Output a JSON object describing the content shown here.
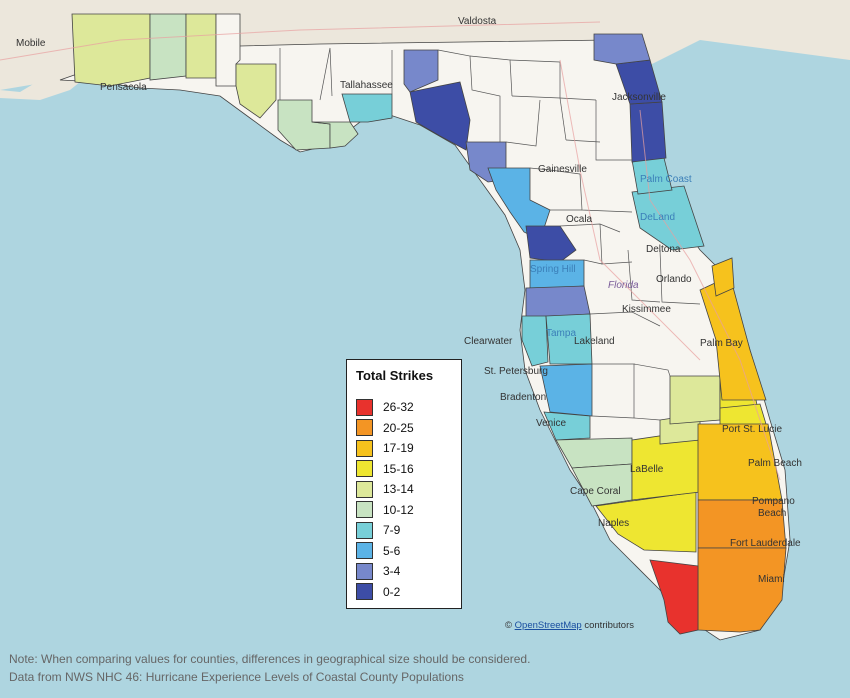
{
  "legend": {
    "title": "Total Strikes",
    "items": [
      {
        "label": "26-32",
        "color": "#e8322d"
      },
      {
        "label": "20-25",
        "color": "#f39524"
      },
      {
        "label": "17-19",
        "color": "#f6c21d"
      },
      {
        "label": "15-16",
        "color": "#eee631"
      },
      {
        "label": "13-14",
        "color": "#dde89a"
      },
      {
        "label": "10-12",
        "color": "#c8e3c2"
      },
      {
        "label": "7-9",
        "color": "#77cfd8"
      },
      {
        "label": "5-6",
        "color": "#5bb3e6"
      },
      {
        "label": "3-4",
        "color": "#7788cb"
      },
      {
        "label": "0-2",
        "color": "#3d4da6"
      }
    ]
  },
  "cities": {
    "valdosta": "Valdosta",
    "mobile": "Mobile",
    "pensacola": "Pensacola",
    "tallahassee": "Tallahassee",
    "jacksonville": "Jacksonville",
    "gainesville": "Gainesville",
    "palm_coast": "Palm Coast",
    "ocala": "Ocala",
    "deland": "DeLand",
    "deltona": "Deltona",
    "orlando": "Orlando",
    "spring_hill": "Spring Hill",
    "florida": "Florida",
    "kissimmee": "Kissimmee",
    "clearwater": "Clearwater",
    "tampa": "Tampa",
    "lakeland": "Lakeland",
    "st_petersburg": "St. Petersburg",
    "palm_bay": "Palm Bay",
    "bradenton": "Bradenton",
    "venice": "Venice",
    "port_st_lucie": "Port St. Lucie",
    "labelle": "LaBelle",
    "west_palm_beach": "Palm Beach",
    "cape_coral": "Cape Coral",
    "pompano_beach_1": "Pompano",
    "pompano_beach_2": "Beach",
    "naples": "Naples",
    "fort_lauderdale": "Fort Lauderdale",
    "miami": "Miami"
  },
  "attribution": {
    "prefix": "©",
    "link": "OpenStreetMap",
    "suffix": "contributors"
  },
  "notes": {
    "line1": "Note: When comparing values for counties, differences in geographical size should be considered.",
    "line2": "Data from NWS NHC 46: Hurricane Experience Levels of Coastal County Populations"
  }
}
